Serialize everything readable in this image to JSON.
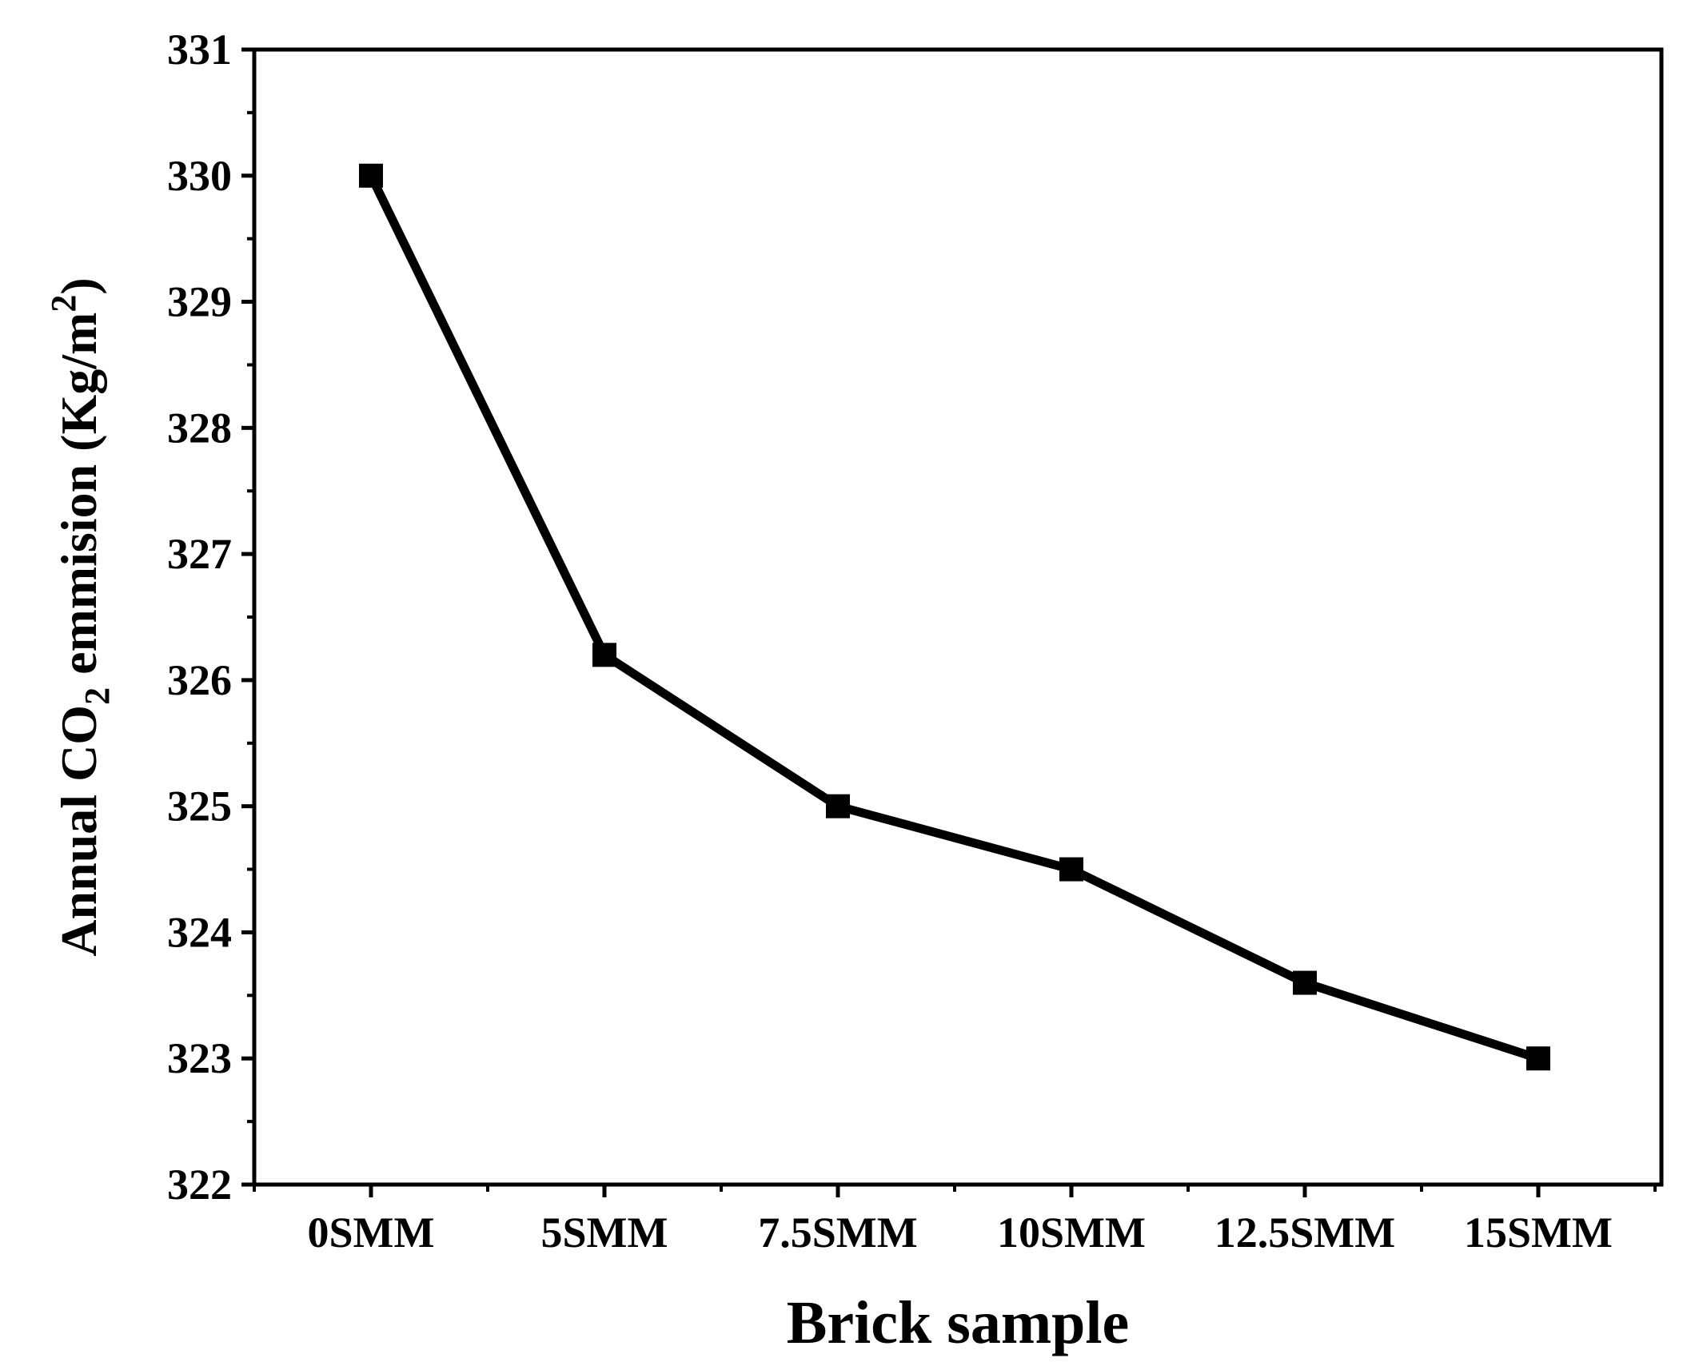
{
  "chart_data": {
    "type": "line",
    "title": "",
    "xlabel": "Brick sample",
    "ylabel": {
      "prefix": "Annual CO",
      "subscript": "2",
      "middle": " emmision (Kg/m",
      "superscript": "2",
      "suffix": ")"
    },
    "categories": [
      "0SMM",
      "5SMM",
      "7.5SMM",
      "10SMM",
      "12.5SMM",
      "15SMM"
    ],
    "series": [
      {
        "values": [
          330.0,
          326.2,
          325.0,
          324.5,
          323.6,
          323.0
        ]
      }
    ],
    "ylim": [
      322,
      331
    ],
    "yticks": [
      322,
      323,
      324,
      325,
      326,
      327,
      328,
      329,
      330,
      331
    ],
    "grid": false,
    "legend": "none",
    "line_color": "#000000",
    "marker": "square"
  }
}
